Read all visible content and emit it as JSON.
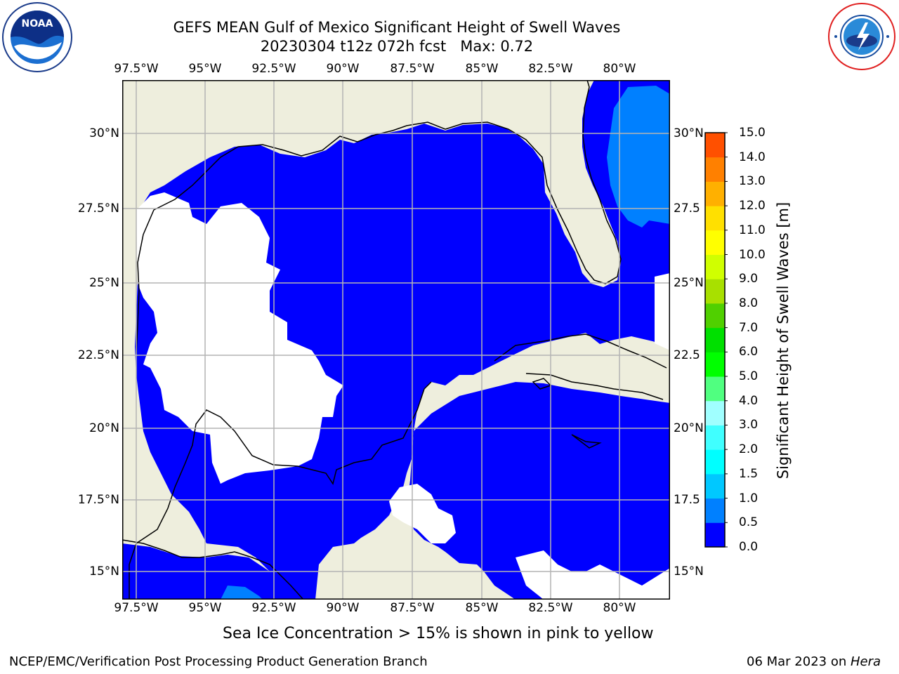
{
  "header": {
    "title_line1": "GEFS MEAN Gulf of Mexico Significant Height of Swell Waves",
    "title_line2": "20230304 t12z 072h fcst   Max: 0.72"
  },
  "logos": {
    "left": "NOAA",
    "left_ring_text": "NATIONAL OCEANIC AND ATMOSPHERIC ADMINISTRATION · U.S. DEPARTMENT OF COMMERCE",
    "right_ring_text": "NATIONAL WEATHER SERVICE"
  },
  "map": {
    "lon_ticks": [
      "97.5°W",
      "95°W",
      "92.5°W",
      "90°W",
      "87.5°W",
      "85°W",
      "82.5°W",
      "80°W"
    ],
    "lat_ticks_left": [
      "30°N",
      "27.5°N",
      "25°N",
      "22.5°N",
      "20°N",
      "17.5°N",
      "15°N"
    ],
    "lat_ticks_right": [
      "30°N",
      "27.5",
      "25°N",
      "22.5",
      "20°N",
      "17.5",
      "15°N"
    ],
    "colors": {
      "land": "#eeeedd",
      "ocean_low": "#0000ff",
      "ocean_mid": "#0080ff",
      "nodata": "#ffffff",
      "grid": "#b4b4b4"
    }
  },
  "colorbar": {
    "title": "Significant Height of Swell Waves [m]",
    "labels": [
      "0.0",
      "0.5",
      "1.0",
      "1.5",
      "2.0",
      "3.0",
      "4.0",
      "5.0",
      "6.0",
      "7.0",
      "8.0",
      "9.0",
      "10.0",
      "11.0",
      "12.0",
      "13.0",
      "14.0",
      "15.0"
    ],
    "colors": [
      "#0000ff",
      "#0080ff",
      "#00c8ff",
      "#00ffff",
      "#40ffff",
      "#a0ffff",
      "#50ff80",
      "#00ff00",
      "#00e000",
      "#50d000",
      "#a8e000",
      "#d0ff00",
      "#ffff00",
      "#ffe000",
      "#ffb000",
      "#ff8000",
      "#ff5000",
      "#ff1000"
    ]
  },
  "note": "Sea Ice Concentration > 15% is shown in pink to yellow",
  "footer": {
    "left": "NCEP/EMC/Verification Post Processing Product Generation Branch",
    "right_prefix": "06 Mar 2023 on ",
    "right_host": "Hera"
  }
}
